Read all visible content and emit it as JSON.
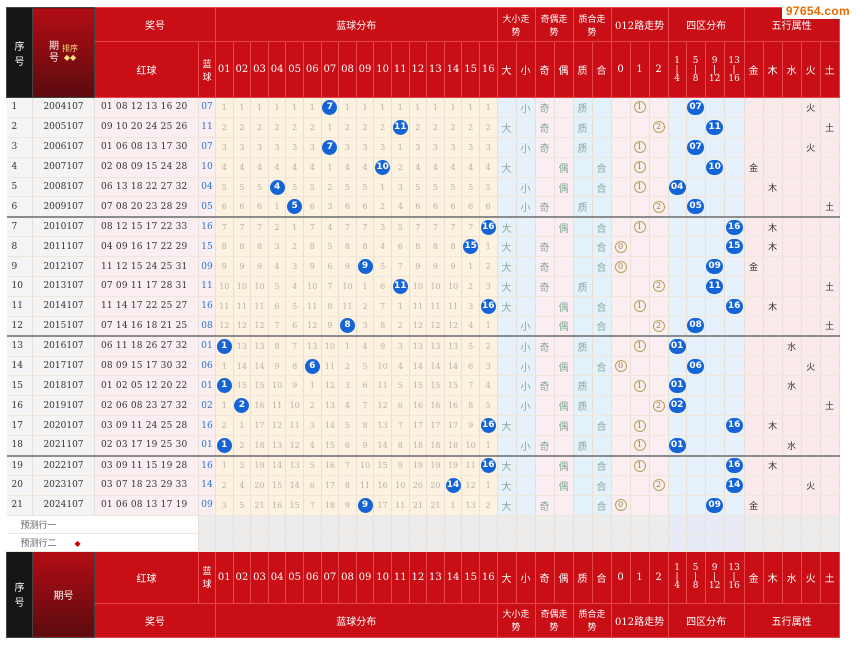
{
  "watermark": "97654.com",
  "head": {
    "seq": "序\n号",
    "period": "期\n号",
    "sort": "排序",
    "sort_arrow": "◆◆",
    "prize": "奖号",
    "blue_dist": "蓝球分布",
    "size_trend": "大小走\n势",
    "oe_trend": "奇偶走\n势",
    "zh_trend": "质合走\n势",
    "road012": "012路走势",
    "zone4": "四区分布",
    "wuxing": "五行属性",
    "red_ball": "红球",
    "blue_ball": "蓝\n球",
    "blue_nums": [
      "01",
      "02",
      "03",
      "04",
      "05",
      "06",
      "07",
      "08",
      "09",
      "10",
      "11",
      "12",
      "13",
      "14",
      "15",
      "16"
    ],
    "ds_labels": [
      "大",
      "小"
    ],
    "oe_labels": [
      "奇",
      "偶"
    ],
    "zh_labels": [
      "质",
      "合"
    ],
    "r012_labels": [
      "0",
      "1",
      "2"
    ],
    "zone_labels": [
      "1\n|\n4",
      "5\n|\n8",
      "9\n|\n12",
      "13\n|\n16"
    ],
    "wx_labels": [
      "金",
      "木",
      "水",
      "火",
      "土"
    ]
  },
  "foot": {
    "period": "期号"
  },
  "predict": [
    "预测行一",
    "预测行二"
  ],
  "predict_arrow": "◆",
  "rows": [
    {
      "seq": "1",
      "period": "2004107",
      "red": "01 08 12 13 16 20",
      "blue": "07",
      "miss": [
        "1",
        "1",
        "1",
        "1",
        "1",
        "1",
        "",
        "1",
        "1",
        "1",
        "1",
        "1",
        "1",
        "1",
        "1",
        "1"
      ],
      "ds": "小",
      "oe": "奇",
      "zh": "质",
      "r": "1",
      "z": "07",
      "wx": "火"
    },
    {
      "seq": "2",
      "period": "2005107",
      "red": "09 10 20 24 25 26",
      "blue": "11",
      "miss": [
        "2",
        "2",
        "2",
        "2",
        "2",
        "2",
        "1",
        "2",
        "2",
        "2",
        "",
        "2",
        "2",
        "2",
        "2",
        "2"
      ],
      "ds": "大",
      "oe": "奇",
      "zh": "质",
      "r": "2",
      "z": "11",
      "wx": "土"
    },
    {
      "seq": "3",
      "period": "2006107",
      "red": "01 06 08 13 17 30",
      "blue": "07",
      "miss": [
        "3",
        "3",
        "3",
        "3",
        "3",
        "3",
        "",
        "3",
        "3",
        "3",
        "1",
        "3",
        "3",
        "3",
        "3",
        "3"
      ],
      "ds": "小",
      "oe": "奇",
      "zh": "质",
      "r": "1",
      "z": "07",
      "wx": "火"
    },
    {
      "seq": "4",
      "period": "2007107",
      "red": "02 08 09 15 24 28",
      "blue": "10",
      "miss": [
        "4",
        "4",
        "4",
        "4",
        "4",
        "4",
        "1",
        "4",
        "4",
        "",
        "2",
        "4",
        "4",
        "4",
        "4",
        "4"
      ],
      "ds": "大",
      "oe": "偶",
      "zh": "合",
      "r": "1",
      "z": "10",
      "wx": "金"
    },
    {
      "seq": "5",
      "period": "2008107",
      "red": "06 13 18 22 27 32",
      "blue": "04",
      "miss": [
        "5",
        "5",
        "5",
        "",
        "5",
        "5",
        "2",
        "5",
        "5",
        "1",
        "3",
        "5",
        "5",
        "5",
        "5",
        "5"
      ],
      "ds": "小",
      "oe": "偶",
      "zh": "合",
      "r": "1",
      "z": "04",
      "wx": "木"
    },
    {
      "seq": "6",
      "period": "2009107",
      "red": "07 08 20 23 28 29",
      "blue": "05",
      "miss": [
        "6",
        "6",
        "6",
        "1",
        "",
        "6",
        "3",
        "6",
        "6",
        "2",
        "4",
        "6",
        "6",
        "6",
        "6",
        "6"
      ],
      "ds": "小",
      "oe": "奇",
      "zh": "质",
      "r": "2",
      "z": "05",
      "wx": "土"
    },
    {
      "seq": "7",
      "period": "2010107",
      "red": "08 12 15 17 22 33",
      "blue": "16",
      "miss": [
        "7",
        "7",
        "7",
        "2",
        "1",
        "7",
        "4",
        "7",
        "7",
        "3",
        "5",
        "7",
        "7",
        "7",
        "7",
        ""
      ],
      "ds": "大",
      "oe": "偶",
      "zh": "合",
      "r": "1",
      "z": "16",
      "wx": "木"
    },
    {
      "seq": "8",
      "period": "2011107",
      "red": "04 09 16 17 22 29",
      "blue": "15",
      "miss": [
        "8",
        "8",
        "8",
        "3",
        "2",
        "8",
        "5",
        "8",
        "8",
        "4",
        "6",
        "8",
        "8",
        "8",
        "",
        "1"
      ],
      "ds": "大",
      "oe": "奇",
      "zh": "合",
      "r": "0",
      "z": "15",
      "wx": "木"
    },
    {
      "seq": "9",
      "period": "2012107",
      "red": "11 12 15 24 25 31",
      "blue": "09",
      "miss": [
        "9",
        "9",
        "9",
        "4",
        "3",
        "9",
        "6",
        "9",
        "",
        "5",
        "7",
        "9",
        "9",
        "9",
        "1",
        "2"
      ],
      "ds": "大",
      "oe": "奇",
      "zh": "合",
      "r": "0",
      "z": "09",
      "wx": "金"
    },
    {
      "seq": "10",
      "period": "2013107",
      "red": "07 09 11 17 28 31",
      "blue": "11",
      "miss": [
        "10",
        "10",
        "10",
        "5",
        "4",
        "10",
        "7",
        "10",
        "1",
        "6",
        "",
        "10",
        "10",
        "10",
        "2",
        "3"
      ],
      "ds": "大",
      "oe": "奇",
      "zh": "质",
      "r": "2",
      "z": "11",
      "wx": "土"
    },
    {
      "seq": "11",
      "period": "2014107",
      "red": "11 14 17 22 25 27",
      "blue": "16",
      "miss": [
        "11",
        "11",
        "11",
        "6",
        "5",
        "11",
        "8",
        "11",
        "2",
        "7",
        "1",
        "11",
        "11",
        "11",
        "3",
        ""
      ],
      "ds": "大",
      "oe": "偶",
      "zh": "合",
      "r": "1",
      "z": "16",
      "wx": "木"
    },
    {
      "seq": "12",
      "period": "2015107",
      "red": "07 14 16 18 21 25",
      "blue": "08",
      "miss": [
        "12",
        "12",
        "12",
        "7",
        "6",
        "12",
        "9",
        "",
        "3",
        "8",
        "2",
        "12",
        "12",
        "12",
        "4",
        "1"
      ],
      "ds": "小",
      "oe": "偶",
      "zh": "合",
      "r": "2",
      "z": "08",
      "wx": "土"
    },
    {
      "seq": "13",
      "period": "2016107",
      "red": "06 11 18 26 27 32",
      "blue": "01",
      "miss": [
        "",
        "13",
        "13",
        "8",
        "7",
        "13",
        "10",
        "1",
        "4",
        "9",
        "3",
        "13",
        "13",
        "13",
        "5",
        "2"
      ],
      "ds": "小",
      "oe": "奇",
      "zh": "质",
      "r": "1",
      "z": "01",
      "wx": "水"
    },
    {
      "seq": "14",
      "period": "2017107",
      "red": "08 09 15 17 30 32",
      "blue": "06",
      "miss": [
        "1",
        "14",
        "14",
        "9",
        "8",
        "",
        "11",
        "2",
        "5",
        "10",
        "4",
        "14",
        "14",
        "14",
        "6",
        "3"
      ],
      "ds": "小",
      "oe": "偶",
      "zh": "合",
      "r": "0",
      "z": "06",
      "wx": "火"
    },
    {
      "seq": "15",
      "period": "2018107",
      "red": "01 02 05 12 20 22",
      "blue": "01",
      "miss": [
        "",
        "15",
        "15",
        "10",
        "9",
        "1",
        "12",
        "3",
        "6",
        "11",
        "5",
        "15",
        "15",
        "15",
        "7",
        "4"
      ],
      "ds": "小",
      "oe": "奇",
      "zh": "质",
      "r": "1",
      "z": "01",
      "wx": "水"
    },
    {
      "seq": "16",
      "period": "2019107",
      "red": "02 06 08 23 27 32",
      "blue": "02",
      "miss": [
        "1",
        "",
        "16",
        "11",
        "10",
        "2",
        "13",
        "4",
        "7",
        "12",
        "6",
        "16",
        "16",
        "16",
        "8",
        "5"
      ],
      "ds": "小",
      "oe": "偶",
      "zh": "质",
      "r": "2",
      "z": "02",
      "wx": "土"
    },
    {
      "seq": "17",
      "period": "2020107",
      "red": "03 09 11 24 25 28",
      "blue": "16",
      "miss": [
        "2",
        "1",
        "17",
        "12",
        "11",
        "3",
        "14",
        "5",
        "8",
        "13",
        "7",
        "17",
        "17",
        "17",
        "9",
        ""
      ],
      "ds": "大",
      "oe": "偶",
      "zh": "合",
      "r": "1",
      "z": "16",
      "wx": "木"
    },
    {
      "seq": "18",
      "period": "2021107",
      "red": "02 03 17 19 25 30",
      "blue": "01",
      "miss": [
        "",
        "2",
        "18",
        "13",
        "12",
        "4",
        "15",
        "6",
        "9",
        "14",
        "8",
        "18",
        "18",
        "18",
        "10",
        "1"
      ],
      "ds": "小",
      "oe": "奇",
      "zh": "质",
      "r": "1",
      "z": "01",
      "wx": "水"
    },
    {
      "seq": "19",
      "period": "2022107",
      "red": "03 09 11 15 19 28",
      "blue": "16",
      "miss": [
        "1",
        "3",
        "19",
        "14",
        "13",
        "5",
        "16",
        "7",
        "10",
        "15",
        "9",
        "19",
        "19",
        "19",
        "11",
        ""
      ],
      "ds": "大",
      "oe": "偶",
      "zh": "合",
      "r": "1",
      "z": "16",
      "wx": "木"
    },
    {
      "seq": "20",
      "period": "2023107",
      "red": "03 07 18 23 29 33",
      "blue": "14",
      "miss": [
        "2",
        "4",
        "20",
        "15",
        "14",
        "6",
        "17",
        "8",
        "11",
        "16",
        "10",
        "20",
        "20",
        "",
        "12",
        "1"
      ],
      "ds": "大",
      "oe": "偶",
      "zh": "合",
      "r": "2",
      "z": "14",
      "wx": "火"
    },
    {
      "seq": "21",
      "period": "2024107",
      "red": "01 06 08 13 17 19",
      "blue": "09",
      "miss": [
        "3",
        "5",
        "21",
        "16",
        "15",
        "7",
        "18",
        "9",
        "",
        "17",
        "11",
        "21",
        "21",
        "1",
        "13",
        "2"
      ],
      "ds": "大",
      "oe": "奇",
      "zh": "合",
      "r": "0",
      "z": "09",
      "wx": "金"
    }
  ]
}
